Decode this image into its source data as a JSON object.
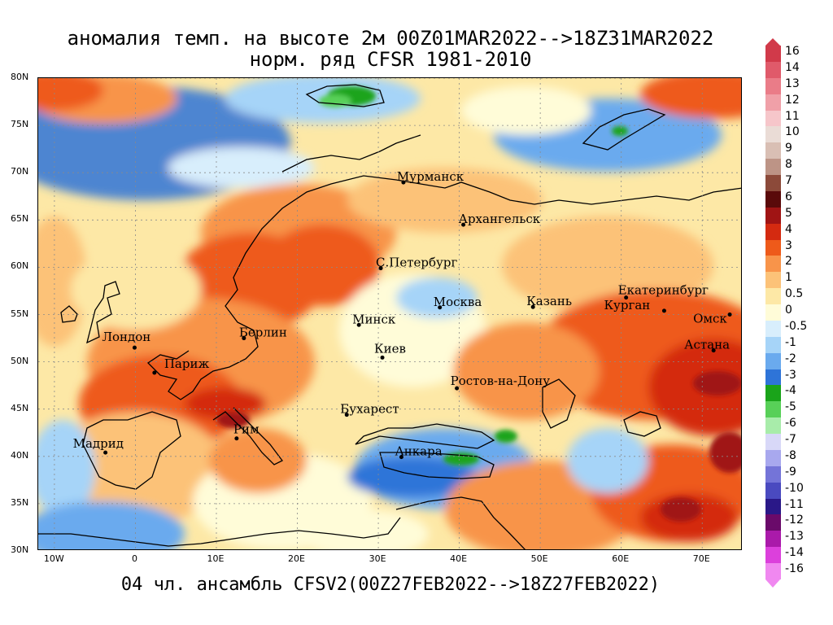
{
  "title_line1": "аномалия темп. на высоте 2м 00Z01MAR2022-->18Z31MAR2022",
  "title_line2": "норм. ряд CFSR 1981-2010",
  "bottom_caption": "04 чл. ансамбль CFSV2(00Z27FEB2022-->18Z27FEB2022)",
  "map": {
    "lon_range": [
      -12,
      75
    ],
    "lat_range": [
      30,
      80
    ],
    "lat_ticks": [
      {
        "lat": 80,
        "label": "80N"
      },
      {
        "lat": 75,
        "label": "75N"
      },
      {
        "lat": 70,
        "label": "70N"
      },
      {
        "lat": 65,
        "label": "65N"
      },
      {
        "lat": 60,
        "label": "60N"
      },
      {
        "lat": 55,
        "label": "55N"
      },
      {
        "lat": 50,
        "label": "50N"
      },
      {
        "lat": 45,
        "label": "45N"
      },
      {
        "lat": 40,
        "label": "40N"
      },
      {
        "lat": 35,
        "label": "35N"
      },
      {
        "lat": 30,
        "label": "30N"
      }
    ],
    "lon_ticks": [
      {
        "lon": -10,
        "label": "10W"
      },
      {
        "lon": 0,
        "label": "0"
      },
      {
        "lon": 10,
        "label": "10E"
      },
      {
        "lon": 20,
        "label": "20E"
      },
      {
        "lon": 30,
        "label": "30E"
      },
      {
        "lon": 40,
        "label": "40E"
      },
      {
        "lon": 50,
        "label": "50E"
      },
      {
        "lon": 60,
        "label": "60E"
      },
      {
        "lon": 70,
        "label": "70E"
      }
    ],
    "cities": [
      {
        "name": "Мурманск",
        "lon": 33.1,
        "lat": 68.97
      },
      {
        "name": "Архангельск",
        "lon": 40.5,
        "lat": 64.5
      },
      {
        "name": "С.Петербург",
        "lon": 30.3,
        "lat": 59.9
      },
      {
        "name": "Москва",
        "lon": 37.6,
        "lat": 55.75
      },
      {
        "name": "Казань",
        "lon": 49.1,
        "lat": 55.8
      },
      {
        "name": "Екатеринбург",
        "lon": 60.6,
        "lat": 56.8
      },
      {
        "name": "Курган",
        "lon": 65.3,
        "lat": 55.4
      },
      {
        "name": "Омск",
        "lon": 73.4,
        "lat": 55.0
      },
      {
        "name": "Астана",
        "lon": 71.4,
        "lat": 51.2
      },
      {
        "name": "Минск",
        "lon": 27.6,
        "lat": 53.9
      },
      {
        "name": "Берлин",
        "lon": 13.4,
        "lat": 52.5
      },
      {
        "name": "Лондон",
        "lon": -0.1,
        "lat": 51.5
      },
      {
        "name": "Париж",
        "lon": 2.35,
        "lat": 48.85
      },
      {
        "name": "Киев",
        "lon": 30.5,
        "lat": 50.45
      },
      {
        "name": "Ростов-на-Дону",
        "lon": 39.7,
        "lat": 47.2
      },
      {
        "name": "Бухарест",
        "lon": 26.1,
        "lat": 44.4
      },
      {
        "name": "Рим",
        "lon": 12.5,
        "lat": 41.9
      },
      {
        "name": "Мадрид",
        "lon": -3.7,
        "lat": 40.4
      },
      {
        "name": "Анкара",
        "lon": 32.85,
        "lat": 39.93
      }
    ]
  },
  "legend": {
    "levels": [
      {
        "label": "16",
        "color": "#d13a4a"
      },
      {
        "label": "14",
        "color": "#e05a6a"
      },
      {
        "label": "13",
        "color": "#ea7c88"
      },
      {
        "label": "12",
        "color": "#f0a0a8"
      },
      {
        "label": "11",
        "color": "#f6c6ca"
      },
      {
        "label": "10",
        "color": "#eadcd6"
      },
      {
        "label": "9",
        "color": "#d9bfb4"
      },
      {
        "label": "8",
        "color": "#bd9486"
      },
      {
        "label": "7",
        "color": "#8c4a3a"
      },
      {
        "label": "6",
        "color": "#5a0a0a"
      },
      {
        "label": "5",
        "color": "#a01414"
      },
      {
        "label": "4",
        "color": "#d42a10"
      },
      {
        "label": "3",
        "color": "#ee5a1a"
      },
      {
        "label": "2",
        "color": "#f8944a"
      },
      {
        "label": "1",
        "color": "#fcc278"
      },
      {
        "label": "0.5",
        "color": "#fde8a6"
      },
      {
        "label": "0",
        "color": "#fffcd8"
      },
      {
        "label": "-0.5",
        "color": "#d8eefc"
      },
      {
        "label": "-1",
        "color": "#a6d4f8"
      },
      {
        "label": "-2",
        "color": "#6aaaee"
      },
      {
        "label": "-3",
        "color": "#2e74d8"
      },
      {
        "label": "-4",
        "color": "#1aa41a"
      },
      {
        "label": "-5",
        "color": "#58d058"
      },
      {
        "label": "-6",
        "color": "#a8ecaa"
      },
      {
        "label": "-7",
        "color": "#d8d8f8"
      },
      {
        "label": "-8",
        "color": "#a8a8ee"
      },
      {
        "label": "-9",
        "color": "#7474d8"
      },
      {
        "label": "-10",
        "color": "#4a4ac0"
      },
      {
        "label": "-11",
        "color": "#2a1888"
      },
      {
        "label": "-12",
        "color": "#6a0a6a"
      },
      {
        "label": "-13",
        "color": "#aa1aaa"
      },
      {
        "label": "-14",
        "color": "#dc40dc"
      },
      {
        "label": "-16",
        "color": "#f088f0"
      }
    ]
  }
}
